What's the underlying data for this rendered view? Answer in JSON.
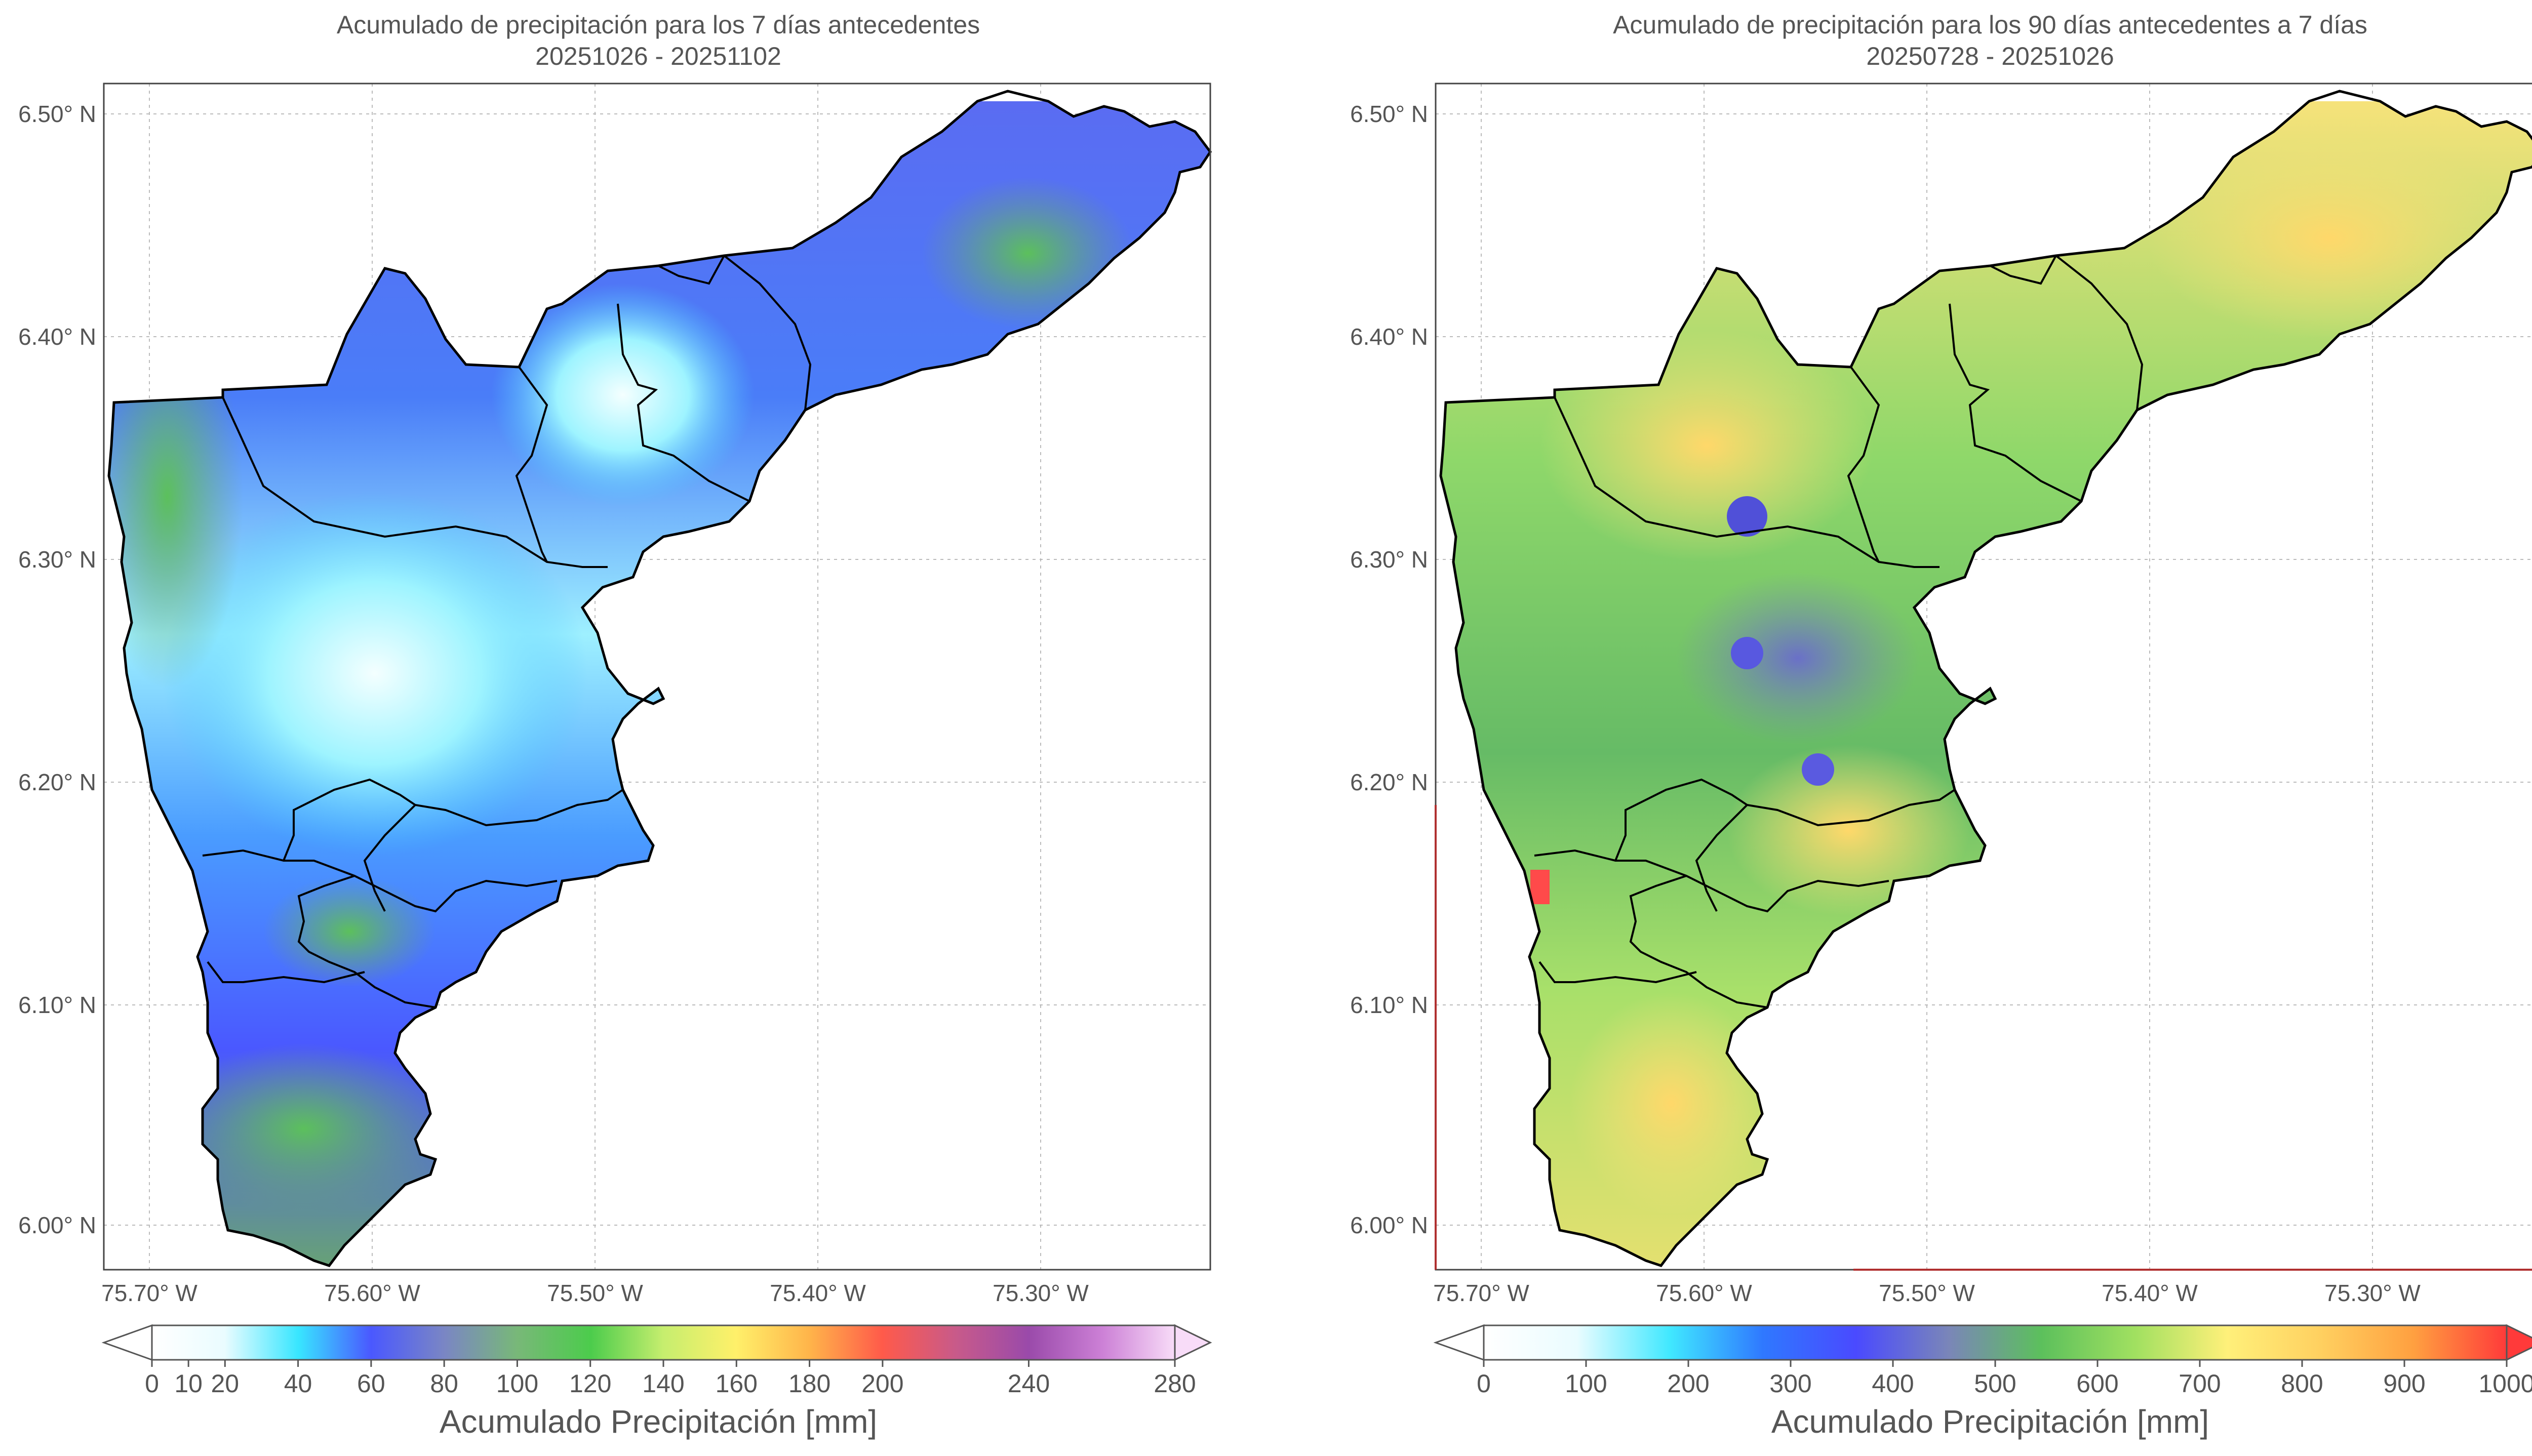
{
  "panels": [
    {
      "title_line1": "Acumulado de precipitación para los 7 días antecedentes",
      "title_line2": "20251026 - 20251102",
      "colorbar": {
        "label": "Acumulado Precipitación [mm]",
        "ticks": [
          "0",
          "10",
          "20",
          "40",
          "60",
          "80",
          "100",
          "120",
          "140",
          "160",
          "180",
          "200",
          "240",
          "280"
        ],
        "colors": [
          "#ffffff",
          "#eafcff",
          "#38e6ff",
          "#4a58ff",
          "#7a86c4",
          "#78b878",
          "#4ccc4c",
          "#c6ee6e",
          "#fff06a",
          "#ffb44a",
          "#ff5a4a",
          "#c85a8a",
          "#9a4aaa",
          "#cc80d6",
          "#f8dcf8"
        ],
        "value_range": [
          0,
          280
        ],
        "arrows": "both"
      }
    },
    {
      "title_line1": "Acumulado de precipitación para los 90 días antecedentes a 7 días",
      "title_line2": "20250728 - 20251026",
      "colorbar": {
        "label": "Acumulado Precipitación [mm]",
        "ticks": [
          "0",
          "100",
          "200",
          "300",
          "400",
          "500",
          "600",
          "700",
          "800",
          "900",
          "1000"
        ],
        "colors": [
          "#ffffff",
          "#eafcff",
          "#40e8ff",
          "#2f78ff",
          "#4a4aff",
          "#7a86b8",
          "#5cc05c",
          "#a0e060",
          "#fff07a",
          "#ffd060",
          "#ffa040",
          "#ff3a3a"
        ],
        "value_range": [
          0,
          1000
        ],
        "arrows": "both"
      }
    }
  ],
  "axes": {
    "lat_ticks": [
      "6.50° N",
      "6.40° N",
      "6.30° N",
      "6.20° N",
      "6.10° N",
      "6.00° N"
    ],
    "lon_ticks": [
      "75.70° W",
      "75.60° W",
      "75.50° W",
      "75.40° W",
      "75.30° W"
    ]
  },
  "colors": {
    "boundary": "#000000",
    "grid": "#bbbbbb",
    "frame": "#444444",
    "accent_red_frame": "#b03030"
  }
}
